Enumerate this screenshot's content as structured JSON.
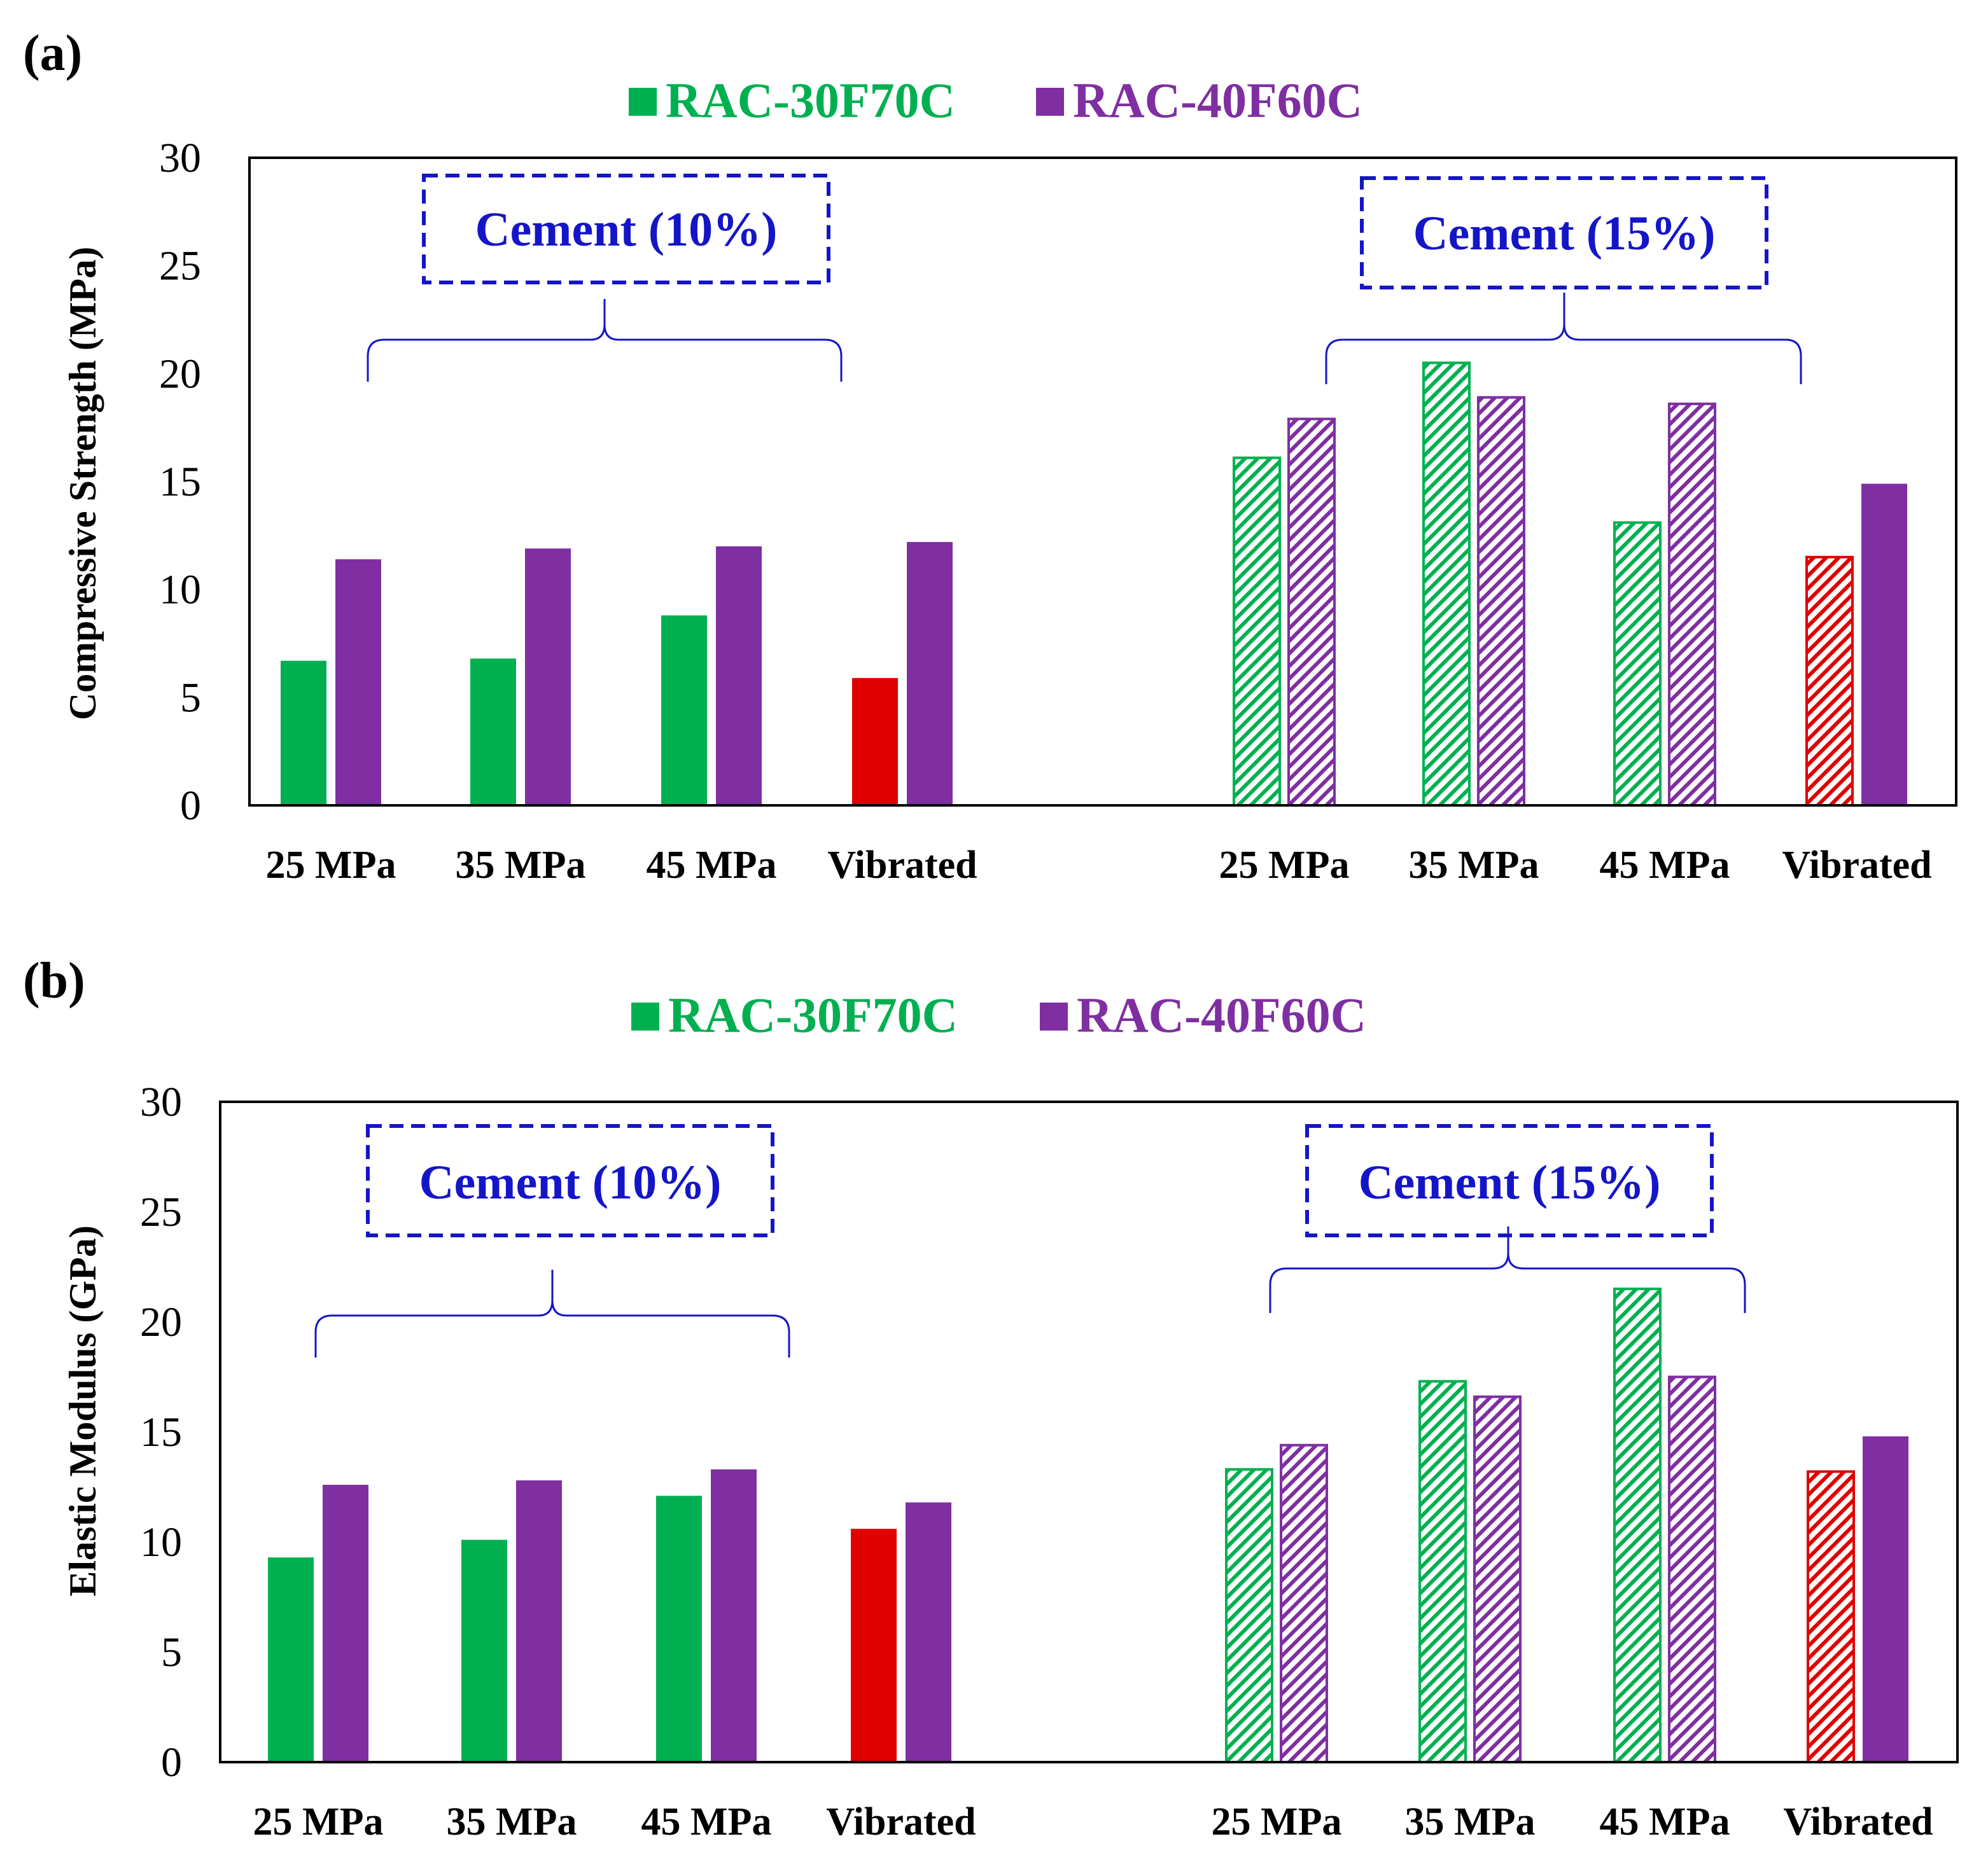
{
  "figure": {
    "colors": {
      "series_a": "#00b050",
      "series_b": "#7f2fa1",
      "vibrated": "#e00000",
      "annotation": "#1515c8",
      "axis": "#000000"
    }
  },
  "chart_data": [
    {
      "panel": "(a)",
      "type": "bar",
      "legend": [
        {
          "label": "RAC-30F70C",
          "color": "#00b050",
          "text_color": "#00b050"
        },
        {
          "label": "RAC-40F60C",
          "color": "#7f2fa1",
          "text_color": "#7f2fa1"
        }
      ],
      "ylabel": "Compressive Strength (MPa)",
      "ylim": [
        0,
        30
      ],
      "yticks": [
        0,
        5,
        10,
        15,
        20,
        25,
        30
      ],
      "groups": [
        {
          "annotation": "Cement (10%)",
          "fill": "solid",
          "categories": [
            "25 MPa",
            "35 MPa",
            "45 MPa",
            "Vibrated"
          ],
          "series": [
            {
              "name": "RAC-30F70C",
              "values": [
                6.7,
                6.8,
                8.8,
                5.9
              ]
            },
            {
              "name": "RAC-40F60C",
              "values": [
                11.4,
                11.9,
                12.0,
                12.2
              ]
            }
          ]
        },
        {
          "annotation": "Cement (15%)",
          "fill": "hatched",
          "categories": [
            "25 MPa",
            "35 MPa",
            "45 MPa",
            "Vibrated"
          ],
          "series": [
            {
              "name": "RAC-30F70C",
              "values": [
                16.1,
                20.5,
                13.1,
                11.5
              ]
            },
            {
              "name": "RAC-40F60C",
              "values": [
                17.9,
                18.9,
                18.6,
                14.9
              ]
            }
          ]
        }
      ]
    },
    {
      "panel": "(b)",
      "type": "bar",
      "legend": [
        {
          "label": "RAC-30F70C",
          "color": "#00b050",
          "text_color": "#00b050"
        },
        {
          "label": "RAC-40F60C",
          "color": "#7f2fa1",
          "text_color": "#7f2fa1"
        }
      ],
      "ylabel": "Elastic Modulus (GPa)",
      "ylim": [
        0,
        30
      ],
      "yticks": [
        0,
        5,
        10,
        15,
        20,
        25,
        30
      ],
      "groups": [
        {
          "annotation": "Cement (10%)",
          "fill": "solid",
          "categories": [
            "25 MPa",
            "35 MPa",
            "45 MPa",
            "Vibrated"
          ],
          "series": [
            {
              "name": "RAC-30F70C",
              "values": [
                9.3,
                10.1,
                12.1,
                10.6
              ]
            },
            {
              "name": "RAC-40F60C",
              "values": [
                12.6,
                12.8,
                13.3,
                11.8
              ]
            }
          ]
        },
        {
          "annotation": "Cement (15%)",
          "fill": "hatched",
          "categories": [
            "25 MPa",
            "35 MPa",
            "45 MPa",
            "Vibrated"
          ],
          "series": [
            {
              "name": "RAC-30F70C",
              "values": [
                13.3,
                17.3,
                21.5,
                13.2
              ]
            },
            {
              "name": "RAC-40F60C",
              "values": [
                14.4,
                16.6,
                17.5,
                14.8
              ]
            }
          ]
        }
      ]
    }
  ]
}
